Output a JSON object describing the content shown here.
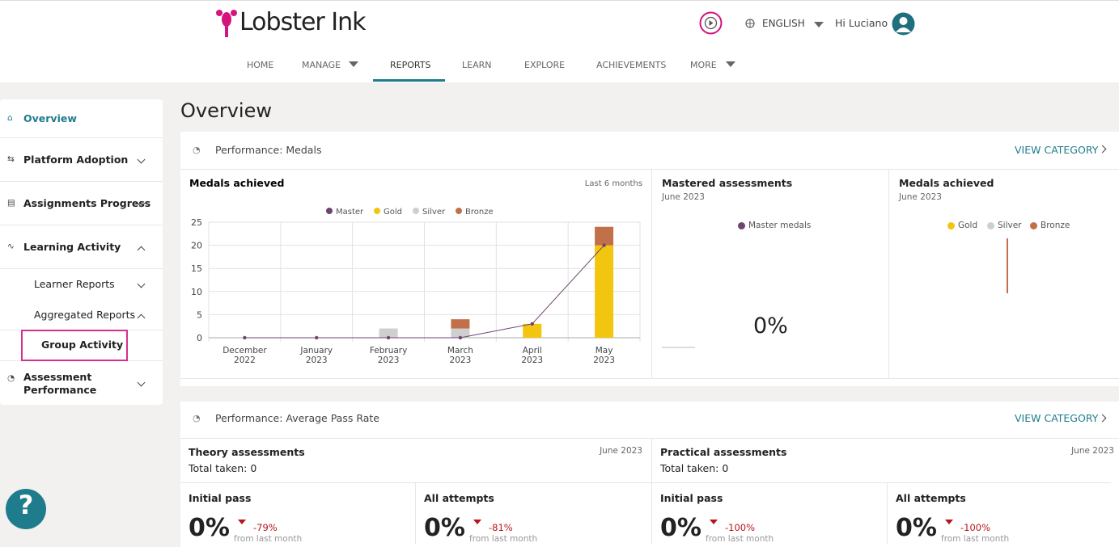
{
  "header": {
    "logo": "Lobster Ink",
    "language": "ENGLISH",
    "greeting": "Hi Luciano",
    "nav": [
      "HOME",
      "MANAGE",
      "REPORTS",
      "LEARN",
      "EXPLORE",
      "ACHIEVEMENTS",
      "MORE"
    ]
  },
  "sidebar": {
    "items": [
      "Overview",
      "Platform Adoption",
      "Assignments Progress",
      "Learning Activity",
      "Learner Reports",
      "Aggregated Reports",
      "Group Activity",
      "Assessment Performance"
    ]
  },
  "help": "?",
  "page_title": "Overview",
  "medals_section": {
    "title": "Performance: Medals",
    "link": "VIEW CATEGORY",
    "mastered": {
      "title": "Mastered assessments",
      "period": "June 2023",
      "legend": "Master medals",
      "value": "0%"
    },
    "achieved": {
      "title": "Medals achieved",
      "period": "June 2023",
      "legend": [
        "Gold",
        "Silver",
        "Bronze"
      ]
    }
  },
  "chart_data": {
    "type": "bar",
    "title": "Medals achieved",
    "subtitle": "Last 6 months",
    "categories": [
      [
        "December",
        "2022"
      ],
      [
        "January",
        "2023"
      ],
      [
        "February",
        "2023"
      ],
      [
        "March",
        "2023"
      ],
      [
        "April",
        "2023"
      ],
      [
        "May",
        "2023"
      ]
    ],
    "series": [
      {
        "name": "Master",
        "color": "#6e4470",
        "type": "line",
        "values": [
          0,
          0,
          0,
          0,
          3,
          20
        ]
      },
      {
        "name": "Gold",
        "color": "#f2c511",
        "values": [
          0,
          0,
          0,
          0,
          3,
          20
        ]
      },
      {
        "name": "Silver",
        "color": "#cfcfcf",
        "values": [
          0,
          0,
          2,
          2,
          0,
          0
        ]
      },
      {
        "name": "Bronze",
        "color": "#c2704a",
        "values": [
          0,
          0,
          0,
          2,
          0,
          4
        ]
      }
    ],
    "ylim": [
      0,
      25
    ],
    "yticks": [
      0,
      5,
      10,
      15,
      20,
      25
    ],
    "grid": true,
    "stacked": true,
    "legend": "top"
  },
  "pass_section": {
    "title": "Performance: Average Pass Rate",
    "link": "VIEW CATEGORY",
    "panels": [
      {
        "title": "Theory assessments",
        "period": "June 2023",
        "total": "Total taken: 0",
        "metrics": [
          {
            "label": "Initial pass",
            "value": "0%",
            "change": "-79%",
            "note": "from last month"
          },
          {
            "label": "All attempts",
            "value": "0%",
            "change": "-81%",
            "note": "from last month"
          }
        ]
      },
      {
        "title": "Practical assessments",
        "period": "June 2023",
        "total": "Total taken: 0",
        "metrics": [
          {
            "label": "Initial pass",
            "value": "0%",
            "change": "-100%",
            "note": "from last month"
          },
          {
            "label": "All attempts",
            "value": "0%",
            "change": "-100%",
            "note": "from last month"
          }
        ]
      }
    ]
  }
}
